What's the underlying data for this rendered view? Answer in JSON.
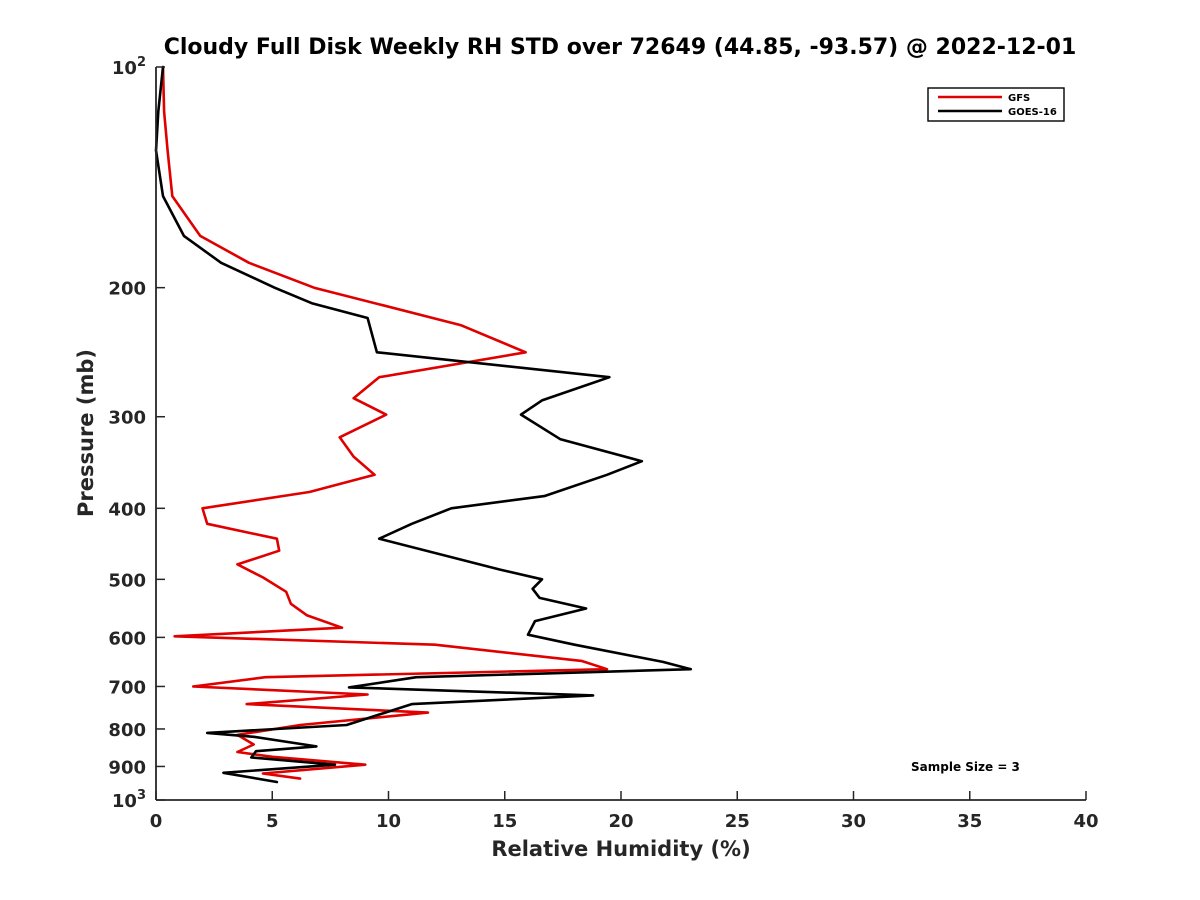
{
  "colors": {
    "gfs": "#e00000",
    "goes16": "#000000",
    "axis": "#262626"
  },
  "chart_data": {
    "type": "line",
    "title": "Cloudy Full Disk Weekly RH STD over 72649 (44.85, -93.57) @ 2022-12-01",
    "xlabel": "Relative Humidity (%)",
    "ylabel": "Pressure (mb)",
    "xlim": [
      0,
      40
    ],
    "ylim": [
      100,
      1000
    ],
    "y_scale": "log",
    "y_reversed": true,
    "grid": false,
    "legend_position": "top-right",
    "x_ticks": [
      0,
      5,
      10,
      15,
      20,
      25,
      30,
      35,
      40
    ],
    "x_tick_labels": [
      "0",
      "5",
      "10",
      "15",
      "20",
      "25",
      "30",
      "35",
      "40"
    ],
    "y_ticks": [
      200,
      300,
      400,
      500,
      600,
      700,
      800,
      900
    ],
    "y_tick_labels": [
      "200",
      "300",
      "400",
      "500",
      "600",
      "700",
      "800",
      "900"
    ],
    "y_end_labels": [
      {
        "value": 100,
        "base": "10",
        "exp": "2"
      },
      {
        "value": 1000,
        "base": "10",
        "exp": "3"
      }
    ],
    "annotation": "Sample Size = 3",
    "series": [
      {
        "name": "GFS",
        "color": "#e00000",
        "points": [
          [
            0.3,
            100
          ],
          [
            0.35,
            115
          ],
          [
            0.5,
            130
          ],
          [
            0.7,
            150
          ],
          [
            1.9,
            170
          ],
          [
            4.0,
            185
          ],
          [
            6.8,
            200
          ],
          [
            13.1,
            225
          ],
          [
            15.9,
            245
          ],
          [
            9.6,
            265
          ],
          [
            8.5,
            283
          ],
          [
            9.9,
            298
          ],
          [
            7.9,
            320
          ],
          [
            8.5,
            340
          ],
          [
            9.4,
            360
          ],
          [
            6.6,
            380
          ],
          [
            2.0,
            400
          ],
          [
            2.2,
            420
          ],
          [
            5.2,
            440
          ],
          [
            5.3,
            457
          ],
          [
            3.5,
            477
          ],
          [
            4.6,
            497
          ],
          [
            5.6,
            520
          ],
          [
            5.8,
            540
          ],
          [
            6.5,
            560
          ],
          [
            8.0,
            582
          ],
          [
            0.8,
            598
          ],
          [
            12.0,
            614
          ],
          [
            18.3,
            646
          ],
          [
            19.4,
            663
          ],
          [
            4.7,
            680
          ],
          [
            1.6,
            700
          ],
          [
            9.1,
            718
          ],
          [
            3.9,
            740
          ],
          [
            11.7,
            760
          ],
          [
            6.2,
            790
          ],
          [
            3.5,
            815
          ],
          [
            4.2,
            840
          ],
          [
            3.5,
            860
          ],
          [
            5.0,
            873
          ],
          [
            9.0,
            895
          ],
          [
            4.6,
            920
          ],
          [
            6.2,
            935
          ]
        ]
      },
      {
        "name": "GOES-16",
        "color": "#000000",
        "points": [
          [
            0.3,
            100
          ],
          [
            0.1,
            115
          ],
          [
            0.0,
            130
          ],
          [
            0.3,
            150
          ],
          [
            1.2,
            170
          ],
          [
            2.8,
            185
          ],
          [
            5.1,
            200
          ],
          [
            6.7,
            210
          ],
          [
            9.1,
            220
          ],
          [
            9.5,
            245
          ],
          [
            19.5,
            265
          ],
          [
            16.6,
            285
          ],
          [
            15.7,
            298
          ],
          [
            17.4,
            322
          ],
          [
            20.9,
            345
          ],
          [
            19.4,
            360
          ],
          [
            16.7,
            385
          ],
          [
            12.7,
            400
          ],
          [
            11.0,
            420
          ],
          [
            9.6,
            440
          ],
          [
            14.8,
            485
          ],
          [
            16.6,
            500
          ],
          [
            16.2,
            515
          ],
          [
            16.5,
            530
          ],
          [
            18.5,
            548
          ],
          [
            16.3,
            570
          ],
          [
            16.0,
            595
          ],
          [
            18.0,
            614
          ],
          [
            21.8,
            648
          ],
          [
            23.0,
            663
          ],
          [
            11.2,
            680
          ],
          [
            8.3,
            702
          ],
          [
            18.8,
            720
          ],
          [
            11.0,
            740
          ],
          [
            8.2,
            790
          ],
          [
            2.2,
            810
          ],
          [
            4.2,
            820
          ],
          [
            6.9,
            845
          ],
          [
            4.3,
            858
          ],
          [
            4.1,
            875
          ],
          [
            7.7,
            895
          ],
          [
            2.9,
            918
          ],
          [
            5.2,
            945
          ]
        ]
      }
    ]
  }
}
